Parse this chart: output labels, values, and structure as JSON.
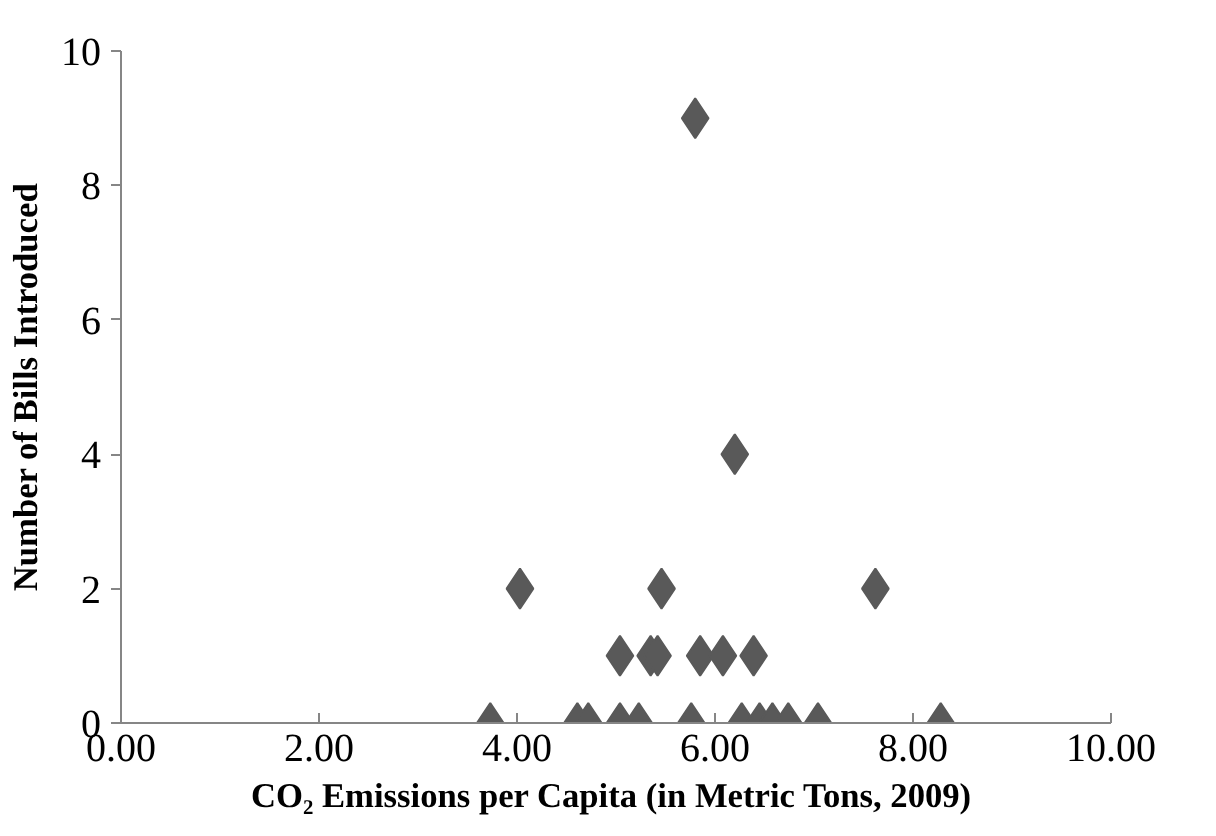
{
  "chart_data": {
    "type": "scatter",
    "xlabel": "CO₂  Emissions per Capita (in Metric Tons, 2009)",
    "ylabel": "Number of Bills Introduced",
    "series": [
      {
        "color": "#595959",
        "x": [
          3.73,
          4.61,
          4.72,
          5.04,
          5.23,
          5.76,
          6.27,
          6.45,
          6.58,
          6.74,
          7.04,
          8.28,
          5.04,
          5.35,
          5.42,
          5.85,
          6.08,
          6.39,
          4.03,
          5.46,
          7.62,
          6.2,
          5.8
        ],
        "values": [
          0,
          0,
          0,
          0,
          0,
          0,
          0,
          0,
          0,
          0,
          0,
          0,
          1,
          1,
          1,
          1,
          1,
          1,
          2,
          2,
          2,
          4,
          9
        ]
      }
    ],
    "marker": "diamond",
    "xlim": [
      0,
      10
    ],
    "ylim": [
      0,
      10
    ],
    "xticks": [
      {
        "value": 0,
        "label": "0.00"
      },
      {
        "value": 2,
        "label": "2.00"
      },
      {
        "value": 4,
        "label": "4.00"
      },
      {
        "value": 6,
        "label": "6.00"
      },
      {
        "value": 8,
        "label": "8.00"
      },
      {
        "value": 10,
        "label": "10.00"
      }
    ],
    "yticks": [
      0,
      2,
      4,
      6,
      8,
      10
    ],
    "grid": false
  }
}
